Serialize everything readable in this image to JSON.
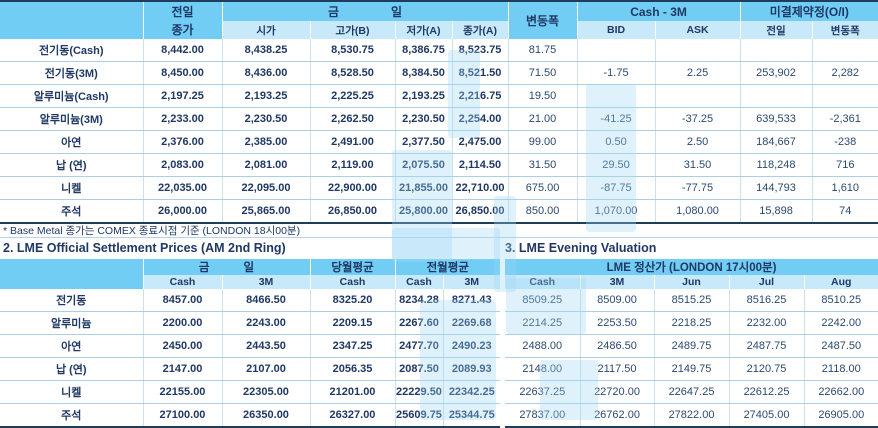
{
  "page": {
    "footnote": "* Base Metal 종가는 COMEX 종료시점 기준 (LONDON 18시00분)",
    "section2_title": "2. LME Official Settlement Prices (AM 2nd Ring)",
    "section3_title": "3. LME Evening Valuation"
  },
  "colors": {
    "header_blue": "#72CDF4",
    "subheader_blue": "#C7E9FA",
    "text_navy": "#1F3864",
    "grid_line": "#ADCFE5",
    "dark_border": "#1E3C5C",
    "watermark_blue": "#9FD9F5"
  },
  "top_table": {
    "headers": {
      "prev": [
        "전일",
        "종가"
      ],
      "today": [
        "금",
        "일"
      ],
      "sub": [
        "시가",
        "고가(B)",
        "저가(A)",
        "종가(A)"
      ],
      "change": "변동폭",
      "cash_3m": "Cash - 3M",
      "bid": "BID",
      "ask": "ASK",
      "oi": "미결제약정(O/I)",
      "oi_prev": "전일",
      "oi_change": "변동폭"
    },
    "rows": [
      {
        "name": "전기동(Cash)",
        "cells": [
          "8,442.00",
          "8,438.25",
          "8,530.75",
          "8,386.75",
          "8,523.75",
          "81.75",
          "",
          "",
          "",
          ""
        ]
      },
      {
        "name": "전기동(3M)",
        "cells": [
          "8,450.00",
          "8,436.00",
          "8,528.50",
          "8,384.50",
          "8,521.50",
          "71.50",
          "-1.75",
          "2.25",
          "253,902",
          "2,282"
        ]
      },
      {
        "name": "알루미늄(Cash)",
        "cells": [
          "2,197.25",
          "2,193.25",
          "2,225.25",
          "2,193.25",
          "2,216.75",
          "19.50",
          "",
          "",
          "",
          ""
        ]
      },
      {
        "name": "알루미늄(3M)",
        "cells": [
          "2,233.00",
          "2,230.50",
          "2,262.50",
          "2,230.50",
          "2,254.00",
          "21.00",
          "-41.25",
          "-37.25",
          "639,533",
          "-2,361"
        ]
      },
      {
        "name": "아연",
        "cells": [
          "2,376.00",
          "2,385.00",
          "2,491.00",
          "2,377.50",
          "2,475.00",
          "99.00",
          "0.50",
          "2.50",
          "184,667",
          "-238"
        ]
      },
      {
        "name": "납 (연)",
        "cells": [
          "2,083.00",
          "2,081.00",
          "2,119.00",
          "2,075.50",
          "2,114.50",
          "31.50",
          "29.50",
          "31.50",
          "118,248",
          "716"
        ]
      },
      {
        "name": "니켈",
        "cells": [
          "22,035.00",
          "22,095.00",
          "22,900.00",
          "21,855.00",
          "22,710.00",
          "675.00",
          "-87.75",
          "-77.75",
          "144,793",
          "1,610"
        ]
      },
      {
        "name": "주석",
        "cells": [
          "26,000.00",
          "25,865.00",
          "26,850.00",
          "25,800.00",
          "26,850.00",
          "850.00",
          "1,070.00",
          "1,080.00",
          "15,898",
          "74"
        ]
      }
    ]
  },
  "settlement_table": {
    "headers": {
      "today": [
        "금",
        "일"
      ],
      "month_avg": "당월평균",
      "prev_month_avg": "전월평균",
      "cash": "Cash",
      "m3": "3M"
    },
    "rows": [
      {
        "name": "전기동",
        "cells": [
          "8457.00",
          "8466.50",
          "8325.20",
          "8234.28",
          "8271.43"
        ]
      },
      {
        "name": "알루미늄",
        "cells": [
          "2200.00",
          "2243.00",
          "2209.15",
          "2267.60",
          "2269.68"
        ]
      },
      {
        "name": "아연",
        "cells": [
          "2450.00",
          "2443.50",
          "2347.25",
          "2477.70",
          "2490.23"
        ]
      },
      {
        "name": "납 (연)",
        "cells": [
          "2147.00",
          "2107.00",
          "2056.35",
          "2087.50",
          "2089.93"
        ]
      },
      {
        "name": "니켈",
        "cells": [
          "22155.00",
          "22305.00",
          "21201.00",
          "22229.50",
          "22342.25"
        ]
      },
      {
        "name": "주석",
        "cells": [
          "27100.00",
          "26350.00",
          "26327.00",
          "25609.75",
          "25344.75"
        ]
      }
    ]
  },
  "evening_table": {
    "header": "LME 정산가 (LONDON 17시00분)",
    "columns": [
      "Cash",
      "3M",
      "Jun",
      "Jul",
      "Aug"
    ],
    "rows": [
      [
        "8509.25",
        "8509.00",
        "8515.25",
        "8516.25",
        "8510.25"
      ],
      [
        "2214.25",
        "2253.50",
        "2218.25",
        "2232.00",
        "2242.00"
      ],
      [
        "2488.00",
        "2486.50",
        "2489.75",
        "2487.75",
        "2487.50"
      ],
      [
        "2148.00",
        "2117.50",
        "2149.75",
        "2120.75",
        "2118.00"
      ],
      [
        "22637.25",
        "22720.00",
        "22647.25",
        "22612.25",
        "22662.00"
      ],
      [
        "27837.00",
        "26762.00",
        "27822.00",
        "27405.00",
        "26905.00"
      ]
    ]
  }
}
